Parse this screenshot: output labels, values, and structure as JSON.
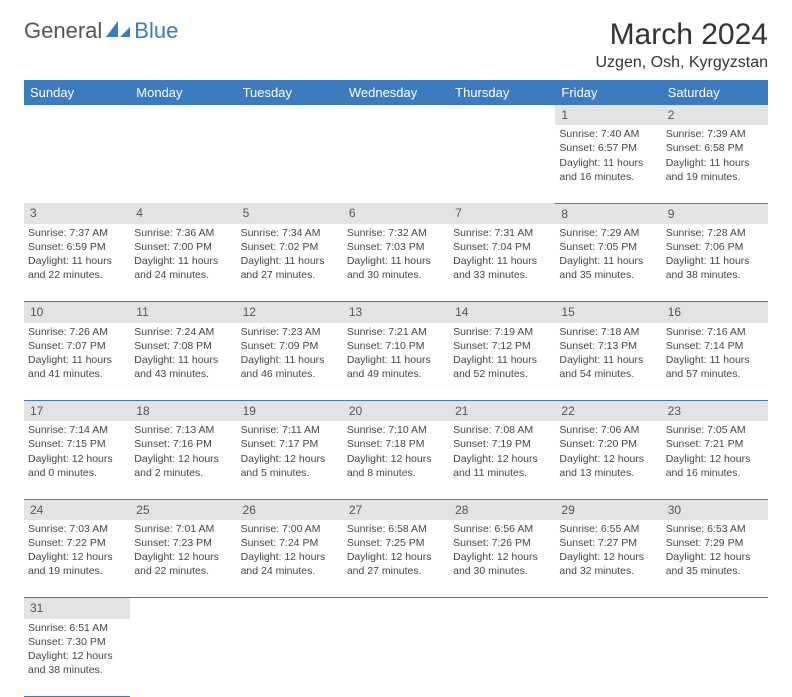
{
  "brand": {
    "part1": "General",
    "part2": "Blue"
  },
  "title": "March 2024",
  "location": "Uzgen, Osh, Kyrgyzstan",
  "colors": {
    "header_bg": "#3b7bbf",
    "header_text": "#ffffff",
    "daynum_bg": "#e3e3e3",
    "border": "#3b7bbf",
    "text": "#444444",
    "background": "#ffffff"
  },
  "fonts": {
    "title_size": 30,
    "location_size": 16,
    "dayhead_size": 13,
    "cell_size": 10.5
  },
  "dayNames": [
    "Sunday",
    "Monday",
    "Tuesday",
    "Wednesday",
    "Thursday",
    "Friday",
    "Saturday"
  ],
  "weeks": [
    [
      null,
      null,
      null,
      null,
      null,
      {
        "n": "1",
        "sr": "Sunrise: 7:40 AM",
        "ss": "Sunset: 6:57 PM",
        "d1": "Daylight: 11 hours",
        "d2": "and 16 minutes."
      },
      {
        "n": "2",
        "sr": "Sunrise: 7:39 AM",
        "ss": "Sunset: 6:58 PM",
        "d1": "Daylight: 11 hours",
        "d2": "and 19 minutes."
      }
    ],
    [
      {
        "n": "3",
        "sr": "Sunrise: 7:37 AM",
        "ss": "Sunset: 6:59 PM",
        "d1": "Daylight: 11 hours",
        "d2": "and 22 minutes."
      },
      {
        "n": "4",
        "sr": "Sunrise: 7:36 AM",
        "ss": "Sunset: 7:00 PM",
        "d1": "Daylight: 11 hours",
        "d2": "and 24 minutes."
      },
      {
        "n": "5",
        "sr": "Sunrise: 7:34 AM",
        "ss": "Sunset: 7:02 PM",
        "d1": "Daylight: 11 hours",
        "d2": "and 27 minutes."
      },
      {
        "n": "6",
        "sr": "Sunrise: 7:32 AM",
        "ss": "Sunset: 7:03 PM",
        "d1": "Daylight: 11 hours",
        "d2": "and 30 minutes."
      },
      {
        "n": "7",
        "sr": "Sunrise: 7:31 AM",
        "ss": "Sunset: 7:04 PM",
        "d1": "Daylight: 11 hours",
        "d2": "and 33 minutes."
      },
      {
        "n": "8",
        "sr": "Sunrise: 7:29 AM",
        "ss": "Sunset: 7:05 PM",
        "d1": "Daylight: 11 hours",
        "d2": "and 35 minutes."
      },
      {
        "n": "9",
        "sr": "Sunrise: 7:28 AM",
        "ss": "Sunset: 7:06 PM",
        "d1": "Daylight: 11 hours",
        "d2": "and 38 minutes."
      }
    ],
    [
      {
        "n": "10",
        "sr": "Sunrise: 7:26 AM",
        "ss": "Sunset: 7:07 PM",
        "d1": "Daylight: 11 hours",
        "d2": "and 41 minutes."
      },
      {
        "n": "11",
        "sr": "Sunrise: 7:24 AM",
        "ss": "Sunset: 7:08 PM",
        "d1": "Daylight: 11 hours",
        "d2": "and 43 minutes."
      },
      {
        "n": "12",
        "sr": "Sunrise: 7:23 AM",
        "ss": "Sunset: 7:09 PM",
        "d1": "Daylight: 11 hours",
        "d2": "and 46 minutes."
      },
      {
        "n": "13",
        "sr": "Sunrise: 7:21 AM",
        "ss": "Sunset: 7:10 PM",
        "d1": "Daylight: 11 hours",
        "d2": "and 49 minutes."
      },
      {
        "n": "14",
        "sr": "Sunrise: 7:19 AM",
        "ss": "Sunset: 7:12 PM",
        "d1": "Daylight: 11 hours",
        "d2": "and 52 minutes."
      },
      {
        "n": "15",
        "sr": "Sunrise: 7:18 AM",
        "ss": "Sunset: 7:13 PM",
        "d1": "Daylight: 11 hours",
        "d2": "and 54 minutes."
      },
      {
        "n": "16",
        "sr": "Sunrise: 7:16 AM",
        "ss": "Sunset: 7:14 PM",
        "d1": "Daylight: 11 hours",
        "d2": "and 57 minutes."
      }
    ],
    [
      {
        "n": "17",
        "sr": "Sunrise: 7:14 AM",
        "ss": "Sunset: 7:15 PM",
        "d1": "Daylight: 12 hours",
        "d2": "and 0 minutes."
      },
      {
        "n": "18",
        "sr": "Sunrise: 7:13 AM",
        "ss": "Sunset: 7:16 PM",
        "d1": "Daylight: 12 hours",
        "d2": "and 2 minutes."
      },
      {
        "n": "19",
        "sr": "Sunrise: 7:11 AM",
        "ss": "Sunset: 7:17 PM",
        "d1": "Daylight: 12 hours",
        "d2": "and 5 minutes."
      },
      {
        "n": "20",
        "sr": "Sunrise: 7:10 AM",
        "ss": "Sunset: 7:18 PM",
        "d1": "Daylight: 12 hours",
        "d2": "and 8 minutes."
      },
      {
        "n": "21",
        "sr": "Sunrise: 7:08 AM",
        "ss": "Sunset: 7:19 PM",
        "d1": "Daylight: 12 hours",
        "d2": "and 11 minutes."
      },
      {
        "n": "22",
        "sr": "Sunrise: 7:06 AM",
        "ss": "Sunset: 7:20 PM",
        "d1": "Daylight: 12 hours",
        "d2": "and 13 minutes."
      },
      {
        "n": "23",
        "sr": "Sunrise: 7:05 AM",
        "ss": "Sunset: 7:21 PM",
        "d1": "Daylight: 12 hours",
        "d2": "and 16 minutes."
      }
    ],
    [
      {
        "n": "24",
        "sr": "Sunrise: 7:03 AM",
        "ss": "Sunset: 7:22 PM",
        "d1": "Daylight: 12 hours",
        "d2": "and 19 minutes."
      },
      {
        "n": "25",
        "sr": "Sunrise: 7:01 AM",
        "ss": "Sunset: 7:23 PM",
        "d1": "Daylight: 12 hours",
        "d2": "and 22 minutes."
      },
      {
        "n": "26",
        "sr": "Sunrise: 7:00 AM",
        "ss": "Sunset: 7:24 PM",
        "d1": "Daylight: 12 hours",
        "d2": "and 24 minutes."
      },
      {
        "n": "27",
        "sr": "Sunrise: 6:58 AM",
        "ss": "Sunset: 7:25 PM",
        "d1": "Daylight: 12 hours",
        "d2": "and 27 minutes."
      },
      {
        "n": "28",
        "sr": "Sunrise: 6:56 AM",
        "ss": "Sunset: 7:26 PM",
        "d1": "Daylight: 12 hours",
        "d2": "and 30 minutes."
      },
      {
        "n": "29",
        "sr": "Sunrise: 6:55 AM",
        "ss": "Sunset: 7:27 PM",
        "d1": "Daylight: 12 hours",
        "d2": "and 32 minutes."
      },
      {
        "n": "30",
        "sr": "Sunrise: 6:53 AM",
        "ss": "Sunset: 7:29 PM",
        "d1": "Daylight: 12 hours",
        "d2": "and 35 minutes."
      }
    ],
    [
      {
        "n": "31",
        "sr": "Sunrise: 6:51 AM",
        "ss": "Sunset: 7:30 PM",
        "d1": "Daylight: 12 hours",
        "d2": "and 38 minutes."
      },
      null,
      null,
      null,
      null,
      null,
      null
    ]
  ]
}
